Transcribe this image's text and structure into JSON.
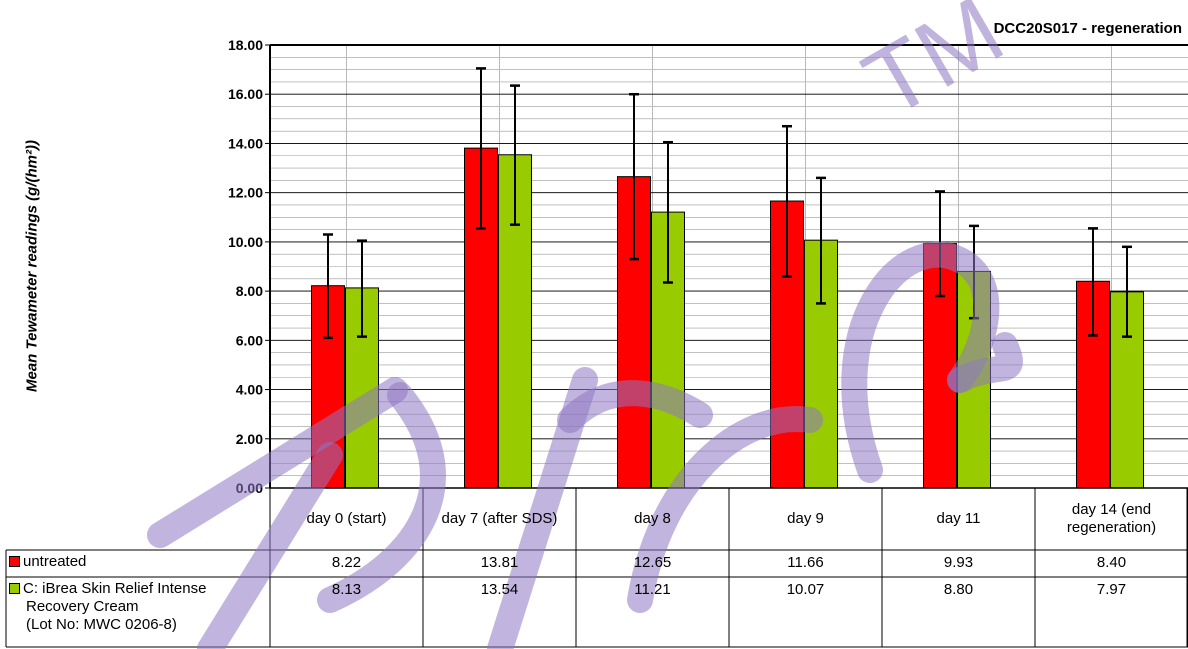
{
  "chart_data": {
    "type": "bar",
    "title": "DCC20S017 - regeneration",
    "ylabel": "Mean Tewameter readings (g/(hm²))",
    "xlabel": "",
    "ylim": [
      0,
      18
    ],
    "yticks": [
      "0.00",
      "2.00",
      "4.00",
      "6.00",
      "8.00",
      "10.00",
      "12.00",
      "14.00",
      "16.00",
      "18.00"
    ],
    "grid": true,
    "categories": [
      "day 0 (start)",
      "day 7 (after SDS)",
      "day 8",
      "day 9",
      "day 11",
      "day 14 (end regeneration)"
    ],
    "series": [
      {
        "name": "untreated",
        "color": "#ff0000",
        "values": [
          8.22,
          13.81,
          12.65,
          11.66,
          9.93,
          8.4
        ],
        "labels": [
          "8.22",
          "13.81",
          "12.65",
          "11.66",
          "9.93",
          "8.40"
        ],
        "error_low": [
          6.1,
          10.55,
          9.3,
          8.6,
          7.8,
          6.2
        ],
        "error_high": [
          10.3,
          17.05,
          16.0,
          14.7,
          12.05,
          10.55
        ]
      },
      {
        "name": "C: iBrea Skin Relief Intense Recovery Cream (Lot No: MWC 0206-8)",
        "name_lines": [
          "C: iBrea Skin Relief Intense",
          "Recovery Cream",
          "(Lot No: MWC 0206-8)"
        ],
        "color": "#99cc00",
        "values": [
          8.13,
          13.54,
          11.21,
          10.07,
          8.8,
          7.97
        ],
        "labels": [
          "8.13",
          "13.54",
          "11.21",
          "10.07",
          "8.80",
          "7.97"
        ],
        "error_low": [
          6.15,
          10.7,
          8.35,
          7.5,
          6.9,
          6.15
        ],
        "error_high": [
          10.05,
          16.35,
          14.05,
          12.6,
          10.65,
          9.8
        ]
      }
    ],
    "data_table": true,
    "watermark": "TM"
  }
}
